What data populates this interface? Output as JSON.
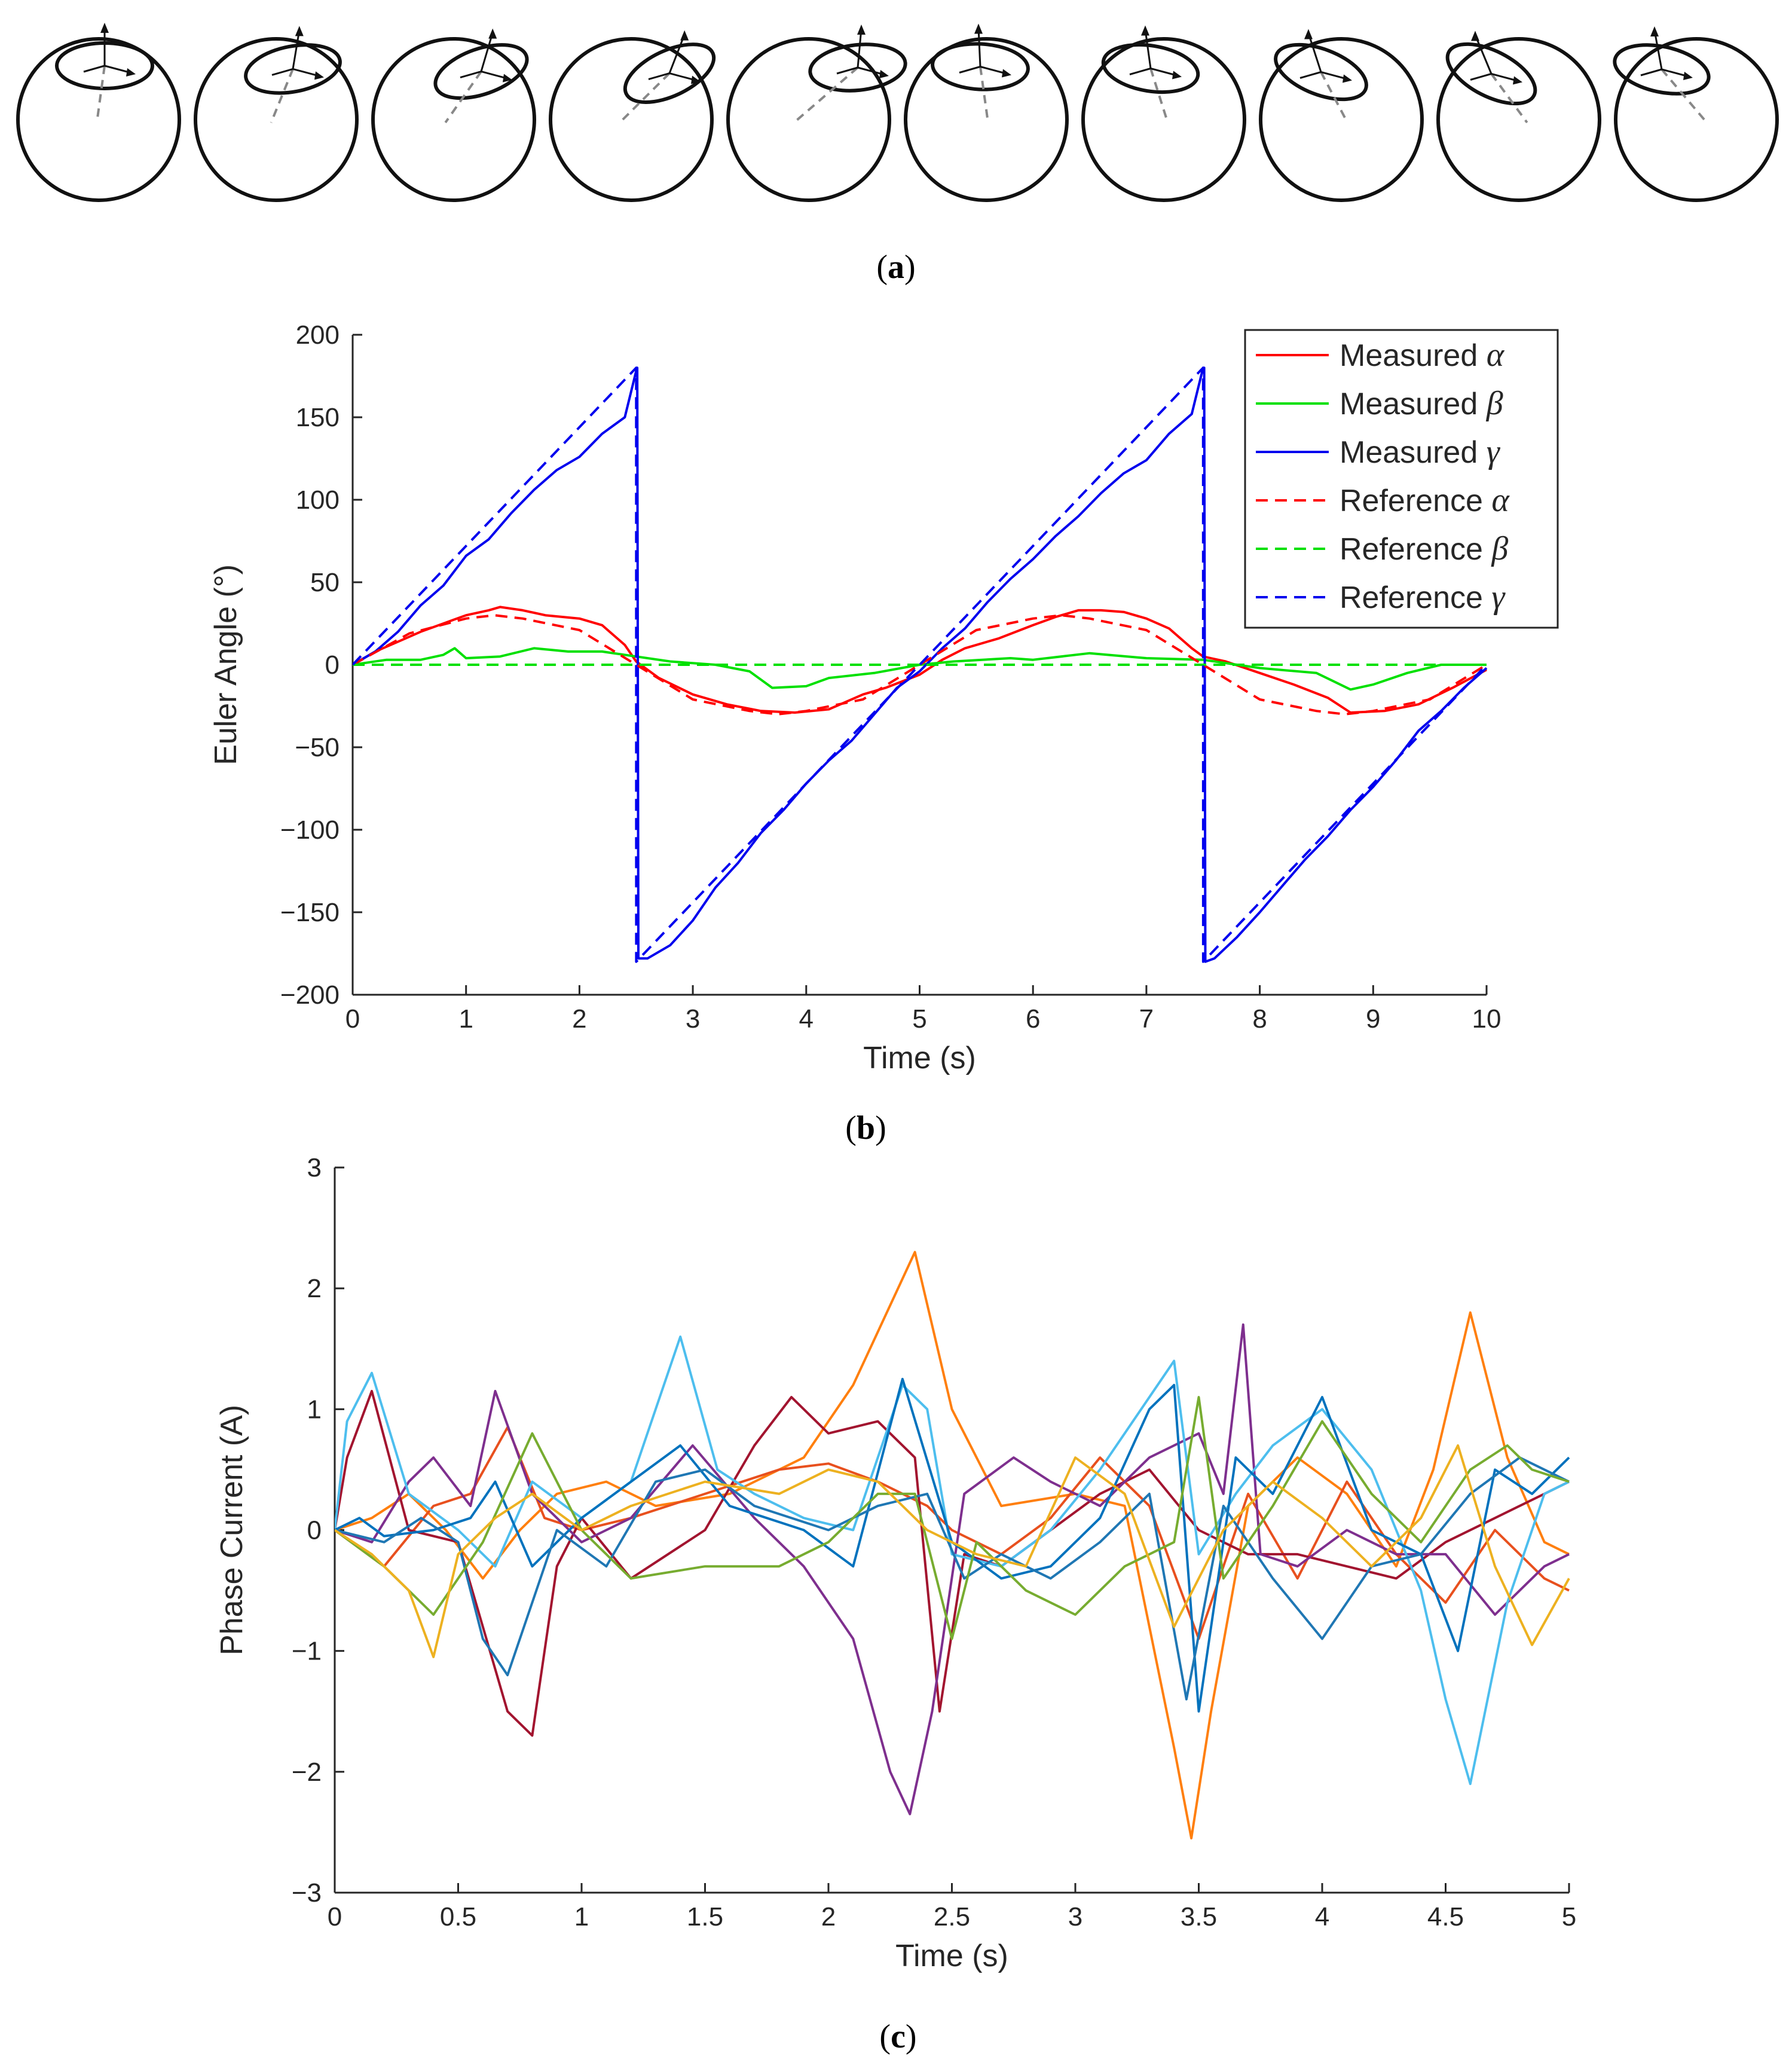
{
  "panel_a": {
    "label_open": "(",
    "label_letter": "a",
    "label_close": ")",
    "sphere_count": 10
  },
  "chart_data": [
    {
      "id": "b",
      "type": "line",
      "panel_label": "b",
      "xlabel": "Time (s)",
      "ylabel": "Euler Angle (°)",
      "xlim": [
        0,
        10
      ],
      "ylim": [
        -200,
        200
      ],
      "xticks": [
        0,
        1,
        2,
        3,
        4,
        5,
        6,
        7,
        8,
        9,
        10
      ],
      "yticks": [
        -200,
        -150,
        -100,
        -50,
        0,
        50,
        100,
        150,
        200
      ],
      "ytick_labels": [
        "−200",
        "−150",
        "−100",
        "−50",
        "0",
        "50",
        "100",
        "150",
        "200"
      ],
      "legend_position": "top-right",
      "series": [
        {
          "name": "Measured",
          "symbol": "α",
          "color": "#ff0000",
          "dash": "solid",
          "x": [
            0,
            0.2,
            0.4,
            0.6,
            0.8,
            1.0,
            1.2,
            1.3,
            1.5,
            1.7,
            2.0,
            2.2,
            2.4,
            2.5,
            2.7,
            3.0,
            3.3,
            3.6,
            3.9,
            4.2,
            4.5,
            4.7,
            5.0,
            5.2,
            5.4,
            5.7,
            6.0,
            6.2,
            6.4,
            6.6,
            6.8,
            7.0,
            7.2,
            7.4,
            7.5,
            7.7,
            8.0,
            8.3,
            8.6,
            8.8,
            9.1,
            9.4,
            9.7,
            10.0
          ],
          "y": [
            0,
            8,
            14,
            20,
            25,
            30,
            33,
            35,
            33,
            30,
            28,
            24,
            12,
            2,
            -8,
            -18,
            -24,
            -28,
            -29,
            -27,
            -18,
            -14,
            -6,
            3,
            10,
            16,
            24,
            29,
            33,
            33,
            32,
            28,
            22,
            10,
            5,
            2,
            -5,
            -12,
            -20,
            -29,
            -28,
            -24,
            -14,
            -3
          ]
        },
        {
          "name": "Measured",
          "symbol": "β",
          "color": "#00e000",
          "dash": "solid",
          "x": [
            0,
            0.3,
            0.6,
            0.8,
            0.9,
            1.0,
            1.3,
            1.6,
            1.9,
            2.2,
            2.5,
            2.8,
            3.2,
            3.5,
            3.7,
            4.0,
            4.2,
            4.6,
            5.0,
            5.3,
            5.8,
            6.0,
            6.5,
            7.0,
            7.5,
            8.0,
            8.5,
            8.8,
            9.0,
            9.3,
            9.6,
            10.0
          ],
          "y": [
            0,
            3,
            3,
            6,
            10,
            4,
            5,
            10,
            8,
            8,
            5,
            2,
            0,
            -4,
            -14,
            -13,
            -8,
            -5,
            0,
            2,
            4,
            3,
            7,
            4,
            3,
            -2,
            -5,
            -15,
            -12,
            -5,
            0,
            0
          ]
        },
        {
          "name": "Measured",
          "symbol": "γ",
          "color": "#0000ee",
          "dash": "solid",
          "x": [
            0,
            0.2,
            0.4,
            0.6,
            0.8,
            1.0,
            1.2,
            1.4,
            1.6,
            1.8,
            2.0,
            2.2,
            2.4,
            2.5,
            2.51,
            2.52,
            2.6,
            2.8,
            3.0,
            3.2,
            3.4,
            3.6,
            3.8,
            4.0,
            4.2,
            4.4,
            4.6,
            4.8,
            5.0,
            5.2,
            5.4,
            5.6,
            5.8,
            6.0,
            6.2,
            6.4,
            6.6,
            6.8,
            7.0,
            7.2,
            7.4,
            7.5,
            7.51,
            7.52,
            7.6,
            7.8,
            8.0,
            8.2,
            8.4,
            8.6,
            8.8,
            9.0,
            9.2,
            9.4,
            9.6,
            9.8,
            10.0
          ],
          "y": [
            0,
            8,
            20,
            36,
            48,
            66,
            76,
            92,
            106,
            118,
            126,
            140,
            150,
            178,
            180,
            -178,
            -178,
            -170,
            -155,
            -135,
            -120,
            -102,
            -88,
            -72,
            -58,
            -46,
            -30,
            -14,
            -4,
            10,
            22,
            38,
            52,
            64,
            78,
            90,
            104,
            116,
            124,
            140,
            152,
            180,
            180,
            -180,
            -178,
            -165,
            -150,
            -134,
            -118,
            -104,
            -88,
            -74,
            -58,
            -40,
            -28,
            -14,
            -2
          ]
        },
        {
          "name": "Reference",
          "symbol": "α",
          "color": "#ff0000",
          "dash": "dashed",
          "x": [
            0,
            0.5,
            1.0,
            1.25,
            1.5,
            2.0,
            2.5,
            3.0,
            3.5,
            3.75,
            4.0,
            4.5,
            5.0,
            5.5,
            6.0,
            6.25,
            6.5,
            7.0,
            7.5,
            8.0,
            8.5,
            8.75,
            9.0,
            9.5,
            10.0
          ],
          "y": [
            0,
            19,
            28,
            30,
            28,
            21,
            0,
            -21,
            -28,
            -30,
            -28,
            -21,
            0,
            21,
            28,
            30,
            28,
            21,
            0,
            -21,
            -28,
            -30,
            -28,
            -21,
            0
          ]
        },
        {
          "name": "Reference",
          "symbol": "β",
          "color": "#00e000",
          "dash": "dashed",
          "x": [
            0,
            10
          ],
          "y": [
            0,
            0
          ]
        },
        {
          "name": "Reference",
          "symbol": "γ",
          "color": "#0000ee",
          "dash": "dashed",
          "x": [
            0,
            2.5,
            2.501,
            7.5,
            7.501,
            10
          ],
          "y": [
            0,
            180,
            -180,
            180,
            -180,
            0
          ]
        }
      ]
    },
    {
      "id": "c",
      "type": "line",
      "panel_label": "c",
      "xlabel": "Time (s)",
      "ylabel": "Phase Current (A)",
      "xlim": [
        0,
        5
      ],
      "ylim": [
        -3,
        3
      ],
      "xticks": [
        0,
        0.5,
        1,
        1.5,
        2,
        2.5,
        3,
        3.5,
        4,
        4.5,
        5
      ],
      "xtick_labels": [
        "0",
        "0.5",
        "1",
        "1.5",
        "2",
        "2.5",
        "3",
        "3.5",
        "4",
        "4.5",
        "5"
      ],
      "yticks": [
        -3,
        -2,
        -1,
        0,
        1,
        2,
        3
      ],
      "ytick_labels": [
        "−3",
        "−2",
        "−1",
        "0",
        "1",
        "2",
        "3"
      ],
      "series": [
        {
          "color": "#ff7f0e",
          "x": [
            0,
            0.15,
            0.3,
            0.45,
            0.6,
            0.75,
            0.9,
            1.1,
            1.3,
            1.6,
            1.9,
            2.1,
            2.35,
            2.5,
            2.7,
            3.0,
            3.2,
            3.4,
            3.47,
            3.55,
            3.7,
            3.9,
            4.1,
            4.3,
            4.45,
            4.6,
            4.75,
            4.9,
            5.0
          ],
          "y": [
            0,
            0.1,
            0.3,
            0.0,
            -0.4,
            0.0,
            0.3,
            0.4,
            0.2,
            0.3,
            0.6,
            1.2,
            2.3,
            1.0,
            0.2,
            0.3,
            0.2,
            -1.8,
            -2.55,
            -1.5,
            0.2,
            0.6,
            0.3,
            -0.3,
            0.5,
            1.8,
            0.6,
            -0.1,
            -0.2
          ]
        },
        {
          "color": "#e8501e",
          "x": [
            0,
            0.2,
            0.4,
            0.55,
            0.7,
            0.85,
            1.0,
            1.2,
            1.5,
            1.8,
            2.0,
            2.2,
            2.4,
            2.5,
            2.7,
            2.9,
            3.1,
            3.3,
            3.5,
            3.7,
            3.9,
            4.1,
            4.3,
            4.5,
            4.7,
            4.9,
            5.0
          ],
          "y": [
            0,
            -0.3,
            0.2,
            0.3,
            0.85,
            0.1,
            0.0,
            0.1,
            0.3,
            0.5,
            0.55,
            0.4,
            0.2,
            0.0,
            -0.2,
            0.1,
            0.6,
            0.2,
            -0.9,
            0.3,
            -0.4,
            0.4,
            -0.2,
            -0.6,
            0.0,
            -0.4,
            -0.5
          ]
        },
        {
          "color": "#a2142f",
          "x": [
            0,
            0.05,
            0.15,
            0.3,
            0.5,
            0.6,
            0.7,
            0.8,
            0.9,
            1.0,
            1.2,
            1.5,
            1.7,
            1.85,
            2.0,
            2.2,
            2.35,
            2.45,
            2.55,
            2.7,
            2.9,
            3.1,
            3.3,
            3.5,
            3.7,
            3.9,
            4.1,
            4.3,
            4.5,
            4.7,
            4.9,
            5.0
          ],
          "y": [
            0,
            0.6,
            1.15,
            0.0,
            -0.1,
            -0.8,
            -1.5,
            -1.7,
            -0.3,
            0.1,
            -0.4,
            0.0,
            0.7,
            1.1,
            0.8,
            0.9,
            0.6,
            -1.5,
            -0.2,
            -0.3,
            0.0,
            0.3,
            0.5,
            0.0,
            -0.2,
            -0.2,
            -0.3,
            -0.4,
            -0.1,
            0.1,
            0.3,
            0.4
          ]
        },
        {
          "color": "#7e2f8e",
          "x": [
            0,
            0.15,
            0.3,
            0.4,
            0.55,
            0.65,
            0.8,
            1.0,
            1.2,
            1.45,
            1.7,
            1.9,
            2.1,
            2.25,
            2.33,
            2.42,
            2.55,
            2.75,
            2.9,
            3.1,
            3.3,
            3.5,
            3.6,
            3.68,
            3.75,
            3.9,
            4.1,
            4.3,
            4.5,
            4.7,
            4.9,
            5.0
          ],
          "y": [
            0,
            -0.1,
            0.4,
            0.6,
            0.2,
            1.15,
            0.3,
            -0.1,
            0.1,
            0.7,
            0.1,
            -0.3,
            -0.9,
            -2.0,
            -2.35,
            -1.5,
            0.3,
            0.6,
            0.4,
            0.2,
            0.6,
            0.8,
            0.3,
            1.7,
            -0.2,
            -0.3,
            0.0,
            -0.2,
            -0.2,
            -0.7,
            -0.3,
            -0.2
          ]
        },
        {
          "color": "#4dbeee",
          "x": [
            0,
            0.05,
            0.15,
            0.3,
            0.5,
            0.65,
            0.8,
            1.0,
            1.2,
            1.4,
            1.55,
            1.7,
            1.9,
            2.1,
            2.3,
            2.4,
            2.5,
            2.7,
            2.9,
            3.1,
            3.3,
            3.4,
            3.5,
            3.65,
            3.8,
            4.0,
            4.2,
            4.4,
            4.5,
            4.6,
            4.75,
            4.9,
            5.0
          ],
          "y": [
            0,
            0.9,
            1.3,
            0.3,
            0.0,
            -0.3,
            0.4,
            0.1,
            0.4,
            1.6,
            0.5,
            0.3,
            0.1,
            0.0,
            1.2,
            1.0,
            -0.2,
            -0.3,
            0.0,
            0.5,
            1.1,
            1.4,
            -0.2,
            0.3,
            0.7,
            1.0,
            0.5,
            -0.5,
            -1.4,
            -2.1,
            -0.6,
            0.3,
            0.4
          ]
        },
        {
          "color": "#0072bd",
          "x": [
            0,
            0.1,
            0.2,
            0.4,
            0.55,
            0.65,
            0.8,
            1.0,
            1.2,
            1.4,
            1.6,
            1.9,
            2.1,
            2.3,
            2.5,
            2.7,
            2.9,
            3.1,
            3.3,
            3.4,
            3.5,
            3.65,
            3.8,
            4.0,
            4.2,
            4.4,
            4.55,
            4.7,
            4.85,
            5.0
          ],
          "y": [
            0,
            0.1,
            -0.05,
            0.0,
            0.1,
            0.4,
            -0.3,
            0.1,
            0.4,
            0.7,
            0.2,
            0.0,
            -0.3,
            1.25,
            -0.1,
            -0.4,
            -0.3,
            0.1,
            1.0,
            1.2,
            -1.5,
            0.6,
            0.3,
            1.1,
            0.0,
            -0.2,
            -1.0,
            0.5,
            0.3,
            0.6
          ]
        },
        {
          "color": "#1f77b4",
          "x": [
            0,
            0.2,
            0.35,
            0.5,
            0.6,
            0.7,
            0.9,
            1.1,
            1.3,
            1.5,
            1.7,
            2.0,
            2.2,
            2.4,
            2.55,
            2.7,
            2.9,
            3.1,
            3.3,
            3.45,
            3.6,
            3.8,
            4.0,
            4.2,
            4.4,
            4.6,
            4.8,
            5.0
          ],
          "y": [
            0,
            -0.1,
            0.1,
            -0.1,
            -0.9,
            -1.2,
            0.0,
            -0.3,
            0.4,
            0.5,
            0.2,
            0.0,
            0.2,
            0.3,
            -0.4,
            -0.2,
            -0.4,
            -0.1,
            0.3,
            -1.4,
            0.2,
            -0.4,
            -0.9,
            -0.3,
            -0.2,
            0.3,
            0.6,
            0.4
          ]
        },
        {
          "color": "#77ac30",
          "x": [
            0,
            0.2,
            0.4,
            0.6,
            0.8,
            1.0,
            1.2,
            1.5,
            1.8,
            2.0,
            2.2,
            2.35,
            2.5,
            2.6,
            2.8,
            3.0,
            3.2,
            3.4,
            3.5,
            3.6,
            3.8,
            4.0,
            4.2,
            4.4,
            4.6,
            4.75,
            4.85,
            5.0
          ],
          "y": [
            0,
            -0.3,
            -0.7,
            -0.1,
            0.8,
            0.0,
            -0.4,
            -0.3,
            -0.3,
            -0.1,
            0.3,
            0.3,
            -0.9,
            -0.1,
            -0.5,
            -0.7,
            -0.3,
            -0.1,
            1.1,
            -0.4,
            0.2,
            0.9,
            0.3,
            -0.1,
            0.5,
            0.7,
            0.5,
            0.4
          ]
        },
        {
          "color": "#edb120",
          "x": [
            0,
            0.15,
            0.3,
            0.4,
            0.5,
            0.65,
            0.8,
            1.0,
            1.2,
            1.5,
            1.8,
            2.0,
            2.2,
            2.4,
            2.6,
            2.8,
            3.0,
            3.2,
            3.4,
            3.6,
            3.8,
            4.0,
            4.2,
            4.4,
            4.55,
            4.7,
            4.85,
            5.0
          ],
          "y": [
            0,
            -0.2,
            -0.5,
            -1.05,
            -0.2,
            0.1,
            0.3,
            0.0,
            0.2,
            0.4,
            0.3,
            0.5,
            0.4,
            0.0,
            -0.2,
            -0.3,
            0.6,
            0.3,
            -0.8,
            0.0,
            0.4,
            0.1,
            -0.3,
            0.1,
            0.7,
            -0.3,
            -0.95,
            -0.4
          ]
        }
      ]
    }
  ]
}
